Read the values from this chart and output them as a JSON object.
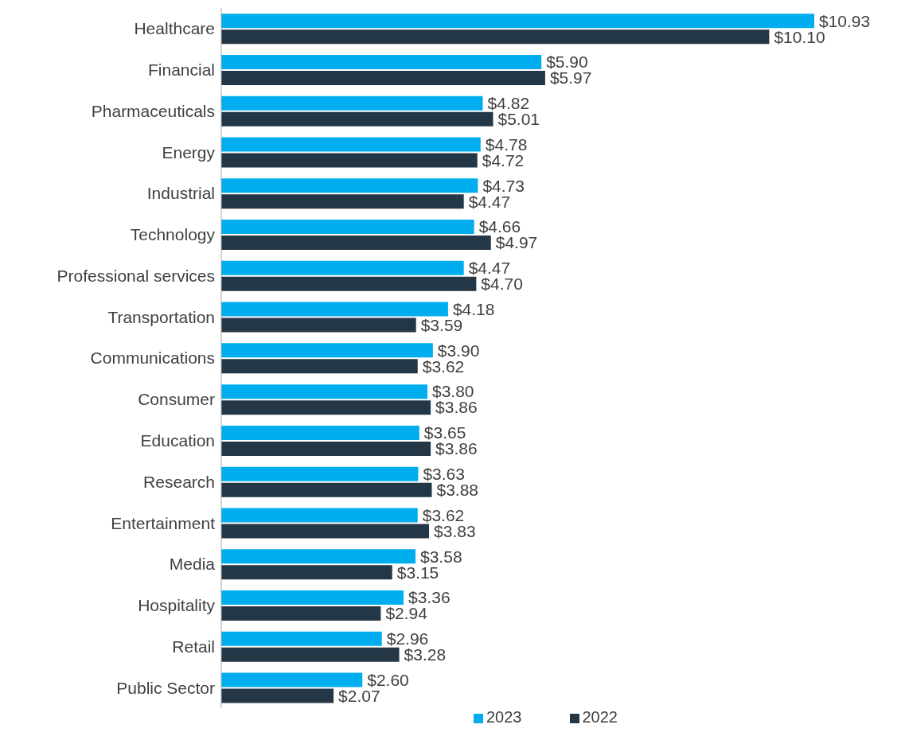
{
  "chart_data": {
    "type": "bar",
    "orientation": "horizontal",
    "legend": "bottom",
    "categories": [
      "Healthcare",
      "Financial",
      "Pharmaceuticals",
      "Energy",
      "Industrial",
      "Technology",
      "Professional services",
      "Transportation",
      "Communications",
      "Consumer",
      "Education",
      "Research",
      "Entertainment",
      "Media",
      "Hospitality",
      "Retail",
      "Public Sector"
    ],
    "series": [
      {
        "name": "2023",
        "color": "#00aeef",
        "values": [
          10.93,
          5.9,
          4.82,
          4.78,
          4.73,
          4.66,
          4.47,
          4.18,
          3.9,
          3.8,
          3.65,
          3.63,
          3.62,
          3.58,
          3.36,
          2.96,
          2.6
        ],
        "value_labels": [
          "$10.93",
          "$5.90",
          "$4.82",
          "$4.78",
          "$4.73",
          "$4.66",
          "$4.47",
          "$4.18",
          "$3.90",
          "$3.80",
          "$3.65",
          "$3.63",
          "$3.62",
          "$3.58",
          "$3.36",
          "$2.96",
          "$2.60"
        ]
      },
      {
        "name": "2022",
        "color": "#243746",
        "values": [
          10.1,
          5.97,
          5.01,
          4.72,
          4.47,
          4.97,
          4.7,
          3.59,
          3.62,
          3.86,
          3.86,
          3.88,
          3.83,
          3.15,
          2.94,
          3.28,
          2.07
        ],
        "value_labels": [
          "$10.10",
          "$5.97",
          "$5.01",
          "$4.72",
          "$4.47",
          "$4.97",
          "$4.70",
          "$3.59",
          "$3.62",
          "$3.86",
          "$3.86",
          "$3.88",
          "$3.83",
          "$3.15",
          "$2.94",
          "$3.28",
          "$2.07"
        ]
      }
    ]
  }
}
